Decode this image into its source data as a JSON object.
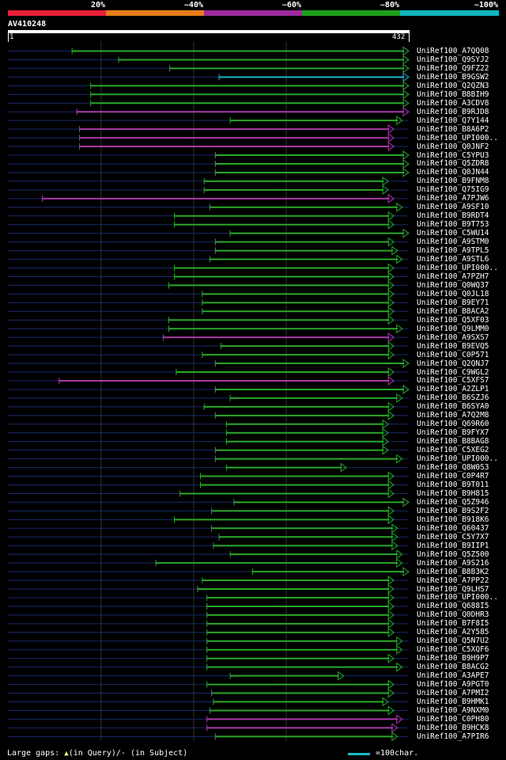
{
  "header": {
    "identity_levels": [
      {
        "label": "20%",
        "color": "#e8203a"
      },
      {
        "label": "~40%",
        "color": "#e87c1a"
      },
      {
        "label": "~60%",
        "color": "#9c2a9c"
      },
      {
        "label": "~80%",
        "color": "#1ca01c"
      },
      {
        "label": "~100%",
        "color": "#12b4c0"
      }
    ],
    "query_id": "AV410248",
    "ruler_start": "1",
    "ruler_end": "432"
  },
  "colors": {
    "green": "#2aa82a",
    "purple": "#a83aa8",
    "cyan": "#1ab8c4",
    "dashed": "#1a2a6a",
    "grid": "#333333",
    "marker": "#ffff80"
  },
  "hits": [
    {
      "label": "UniRef100_A7QQ08",
      "start": 70,
      "end": 432,
      "color": "green"
    },
    {
      "label": "UniRef100_Q9SYJ2",
      "start": 120,
      "end": 432,
      "color": "green"
    },
    {
      "label": "UniRef100_Q9FZ22",
      "start": 175,
      "end": 432,
      "color": "green"
    },
    {
      "label": "UniRef100_B9GSW2",
      "start": 228,
      "end": 432,
      "color": "cyan"
    },
    {
      "label": "UniRef100_Q2QZN3",
      "start": 90,
      "end": 432,
      "color": "green"
    },
    {
      "label": "UniRef100_B8BIH9",
      "start": 90,
      "end": 432,
      "color": "green"
    },
    {
      "label": "UniRef100_A3CDV8",
      "start": 90,
      "end": 432,
      "color": "green"
    },
    {
      "label": "UniRef100_B9RJD8",
      "start": 75,
      "end": 432,
      "color": "purple"
    },
    {
      "label": "UniRef100_Q7Y144",
      "start": 240,
      "end": 425,
      "color": "green"
    },
    {
      "label": "UniRef100_B8A6P2",
      "start": 78,
      "end": 416,
      "color": "purple"
    },
    {
      "label": "UniRef100_UPI000..",
      "start": 78,
      "end": 416,
      "color": "purple"
    },
    {
      "label": "UniRef100_Q0JNF2",
      "start": 78,
      "end": 416,
      "color": "purple"
    },
    {
      "label": "UniRef100_C5YPU3",
      "start": 224,
      "end": 432,
      "color": "green"
    },
    {
      "label": "UniRef100_Q5ZDR8",
      "start": 224,
      "end": 432,
      "color": "green"
    },
    {
      "label": "UniRef100_Q0JN44",
      "start": 224,
      "end": 432,
      "color": "green"
    },
    {
      "label": "UniRef100_B9FNM8",
      "start": 212,
      "end": 410,
      "color": "green"
    },
    {
      "label": "UniRef100_Q75IG9",
      "start": 212,
      "end": 410,
      "color": "green"
    },
    {
      "label": "UniRef100_A7PJW6",
      "start": 38,
      "end": 416,
      "color": "purple"
    },
    {
      "label": "UniRef100_A9SF10",
      "start": 218,
      "end": 425,
      "color": "green"
    },
    {
      "label": "UniRef100_B9RDT4",
      "start": 180,
      "end": 416,
      "color": "green"
    },
    {
      "label": "UniRef100_B9T753",
      "start": 180,
      "end": 416,
      "color": "green"
    },
    {
      "label": "UniRef100_C5WU14",
      "start": 240,
      "end": 432,
      "color": "green"
    },
    {
      "label": "UniRef100_A9STM0",
      "start": 224,
      "end": 416,
      "color": "green"
    },
    {
      "label": "UniRef100_A9TPL5",
      "start": 224,
      "end": 420,
      "color": "green"
    },
    {
      "label": "UniRef100_A9STL6",
      "start": 218,
      "end": 425,
      "color": "green"
    },
    {
      "label": "UniRef100_UPI000..",
      "start": 180,
      "end": 416,
      "color": "green"
    },
    {
      "label": "UniRef100_A7PZH7",
      "start": 180,
      "end": 416,
      "color": "green"
    },
    {
      "label": "UniRef100_Q0WQ37",
      "start": 174,
      "end": 416,
      "color": "green"
    },
    {
      "label": "UniRef100_Q0JL18",
      "start": 210,
      "end": 416,
      "color": "green"
    },
    {
      "label": "UniRef100_B9EY71",
      "start": 210,
      "end": 416,
      "color": "green"
    },
    {
      "label": "UniRef100_B8ACA2",
      "start": 210,
      "end": 416,
      "color": "green"
    },
    {
      "label": "UniRef100_Q5XF03",
      "start": 174,
      "end": 416,
      "color": "green"
    },
    {
      "label": "UniRef100_Q9LMM0",
      "start": 174,
      "end": 425,
      "color": "green"
    },
    {
      "label": "UniRef100_A9SXS7",
      "start": 168,
      "end": 416,
      "color": "purple"
    },
    {
      "label": "UniRef100_B9EVQ5",
      "start": 230,
      "end": 416,
      "color": "green"
    },
    {
      "label": "UniRef100_C0P571",
      "start": 210,
      "end": 416,
      "color": "green"
    },
    {
      "label": "UniRef100_Q2QNJ7",
      "start": 224,
      "end": 432,
      "color": "green"
    },
    {
      "label": "UniRef100_C9WGL2",
      "start": 182,
      "end": 416,
      "color": "green"
    },
    {
      "label": "UniRef100_C5XFS7",
      "start": 56,
      "end": 416,
      "color": "purple"
    },
    {
      "label": "UniRef100_A2ZLP1",
      "start": 224,
      "end": 432,
      "color": "green"
    },
    {
      "label": "UniRef100_B6SZJ6",
      "start": 240,
      "end": 425,
      "color": "green"
    },
    {
      "label": "UniRef100_B6SYA0",
      "start": 212,
      "end": 416,
      "color": "green"
    },
    {
      "label": "UniRef100_A7Q2M8",
      "start": 224,
      "end": 416,
      "color": "green"
    },
    {
      "label": "UniRef100_Q69R60",
      "start": 236,
      "end": 410,
      "color": "green"
    },
    {
      "label": "UniRef100_B9FYX7",
      "start": 236,
      "end": 410,
      "color": "green"
    },
    {
      "label": "UniRef100_B8BAG8",
      "start": 236,
      "end": 410,
      "color": "green"
    },
    {
      "label": "UniRef100_C5XEG2",
      "start": 224,
      "end": 410,
      "color": "green"
    },
    {
      "label": "UniRef100_UPI000..",
      "start": 224,
      "end": 425,
      "color": "green"
    },
    {
      "label": "UniRef100_Q8W0S3",
      "start": 236,
      "end": 365,
      "color": "green"
    },
    {
      "label": "UniRef100_C0P4R7",
      "start": 208,
      "end": 416,
      "color": "green"
    },
    {
      "label": "UniRef100_B9T011",
      "start": 208,
      "end": 416,
      "color": "green"
    },
    {
      "label": "UniRef100_B9H815",
      "start": 186,
      "end": 416,
      "color": "green"
    },
    {
      "label": "UniRef100_Q5Z946",
      "start": 244,
      "end": 432,
      "color": "green"
    },
    {
      "label": "UniRef100_B9S2F2",
      "start": 220,
      "end": 416,
      "color": "green"
    },
    {
      "label": "UniRef100_B918K6",
      "start": 180,
      "end": 416,
      "color": "green"
    },
    {
      "label": "UniRef100_Q60437",
      "start": 220,
      "end": 420,
      "color": "green"
    },
    {
      "label": "UniRef100_C5Y7X7",
      "start": 228,
      "end": 420,
      "color": "green"
    },
    {
      "label": "UniRef100_B9IIP1",
      "start": 222,
      "end": 420,
      "color": "green"
    },
    {
      "label": "UniRef100_Q5Z500",
      "start": 240,
      "end": 425,
      "color": "green"
    },
    {
      "label": "UniRef100_A9S216",
      "start": 160,
      "end": 425,
      "color": "green"
    },
    {
      "label": "UniRef100_B8B3K2",
      "start": 264,
      "end": 432,
      "color": "green"
    },
    {
      "label": "UniRef100_A7PP22",
      "start": 210,
      "end": 416,
      "color": "green"
    },
    {
      "label": "UniRef100_Q9LHS7",
      "start": 205,
      "end": 416,
      "color": "green"
    },
    {
      "label": "UniRef100_UPI000..",
      "start": 215,
      "end": 416,
      "color": "green"
    },
    {
      "label": "UniRef100_Q688I5",
      "start": 215,
      "end": 416,
      "color": "green"
    },
    {
      "label": "UniRef100_Q0DHR3",
      "start": 215,
      "end": 416,
      "color": "green"
    },
    {
      "label": "UniRef100_B7F8I5",
      "start": 215,
      "end": 416,
      "color": "green"
    },
    {
      "label": "UniRef100_A2Y585",
      "start": 215,
      "end": 416,
      "color": "green"
    },
    {
      "label": "UniRef100_Q5N7U2",
      "start": 215,
      "end": 425,
      "color": "green"
    },
    {
      "label": "UniRef100_C5XQF6",
      "start": 215,
      "end": 425,
      "color": "green"
    },
    {
      "label": "UniRef100_B9H9P7",
      "start": 215,
      "end": 416,
      "color": "green"
    },
    {
      "label": "UniRef100_B8ACG2",
      "start": 215,
      "end": 425,
      "color": "green"
    },
    {
      "label": "UniRef100_A3APE7",
      "start": 240,
      "end": 362,
      "color": "green"
    },
    {
      "label": "UniRef100_A9PGT0",
      "start": 215,
      "end": 416,
      "color": "green"
    },
    {
      "label": "UniRef100_A7PMI2",
      "start": 220,
      "end": 416,
      "color": "green"
    },
    {
      "label": "UniRef100_B9HMK1",
      "start": 222,
      "end": 410,
      "color": "green"
    },
    {
      "label": "UniRef100_A9NXM0",
      "start": 218,
      "end": 416,
      "color": "green"
    },
    {
      "label": "UniRef100_C0PH80",
      "start": 215,
      "end": 425,
      "color": "purple"
    },
    {
      "label": "UniRef100_B9HCK8",
      "start": 215,
      "end": 420,
      "color": "purple"
    },
    {
      "label": "UniRef100_A7PIR6",
      "start": 224,
      "end": 420,
      "color": "green"
    }
  ],
  "footer": {
    "gaps_label": "Large gaps:",
    "in_query": "(in Query)/",
    "dash": "-",
    "in_subject": " (in Subject)",
    "scale_label": "=100char."
  }
}
